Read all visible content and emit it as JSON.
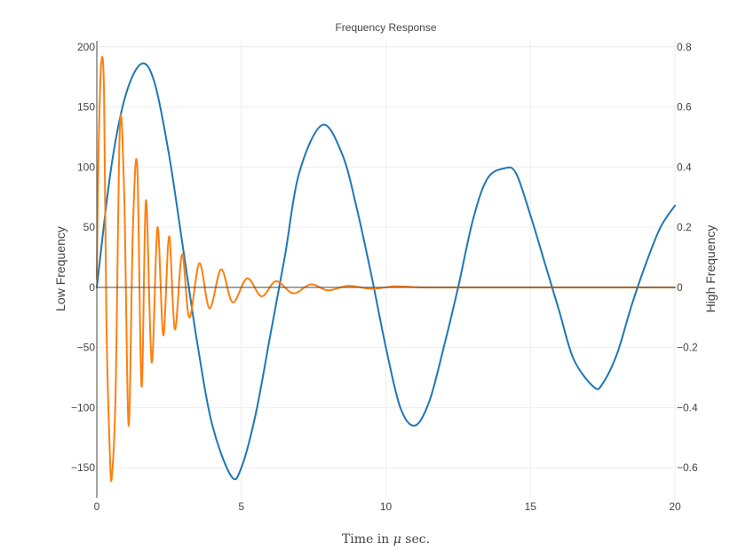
{
  "chart_data": {
    "type": "line",
    "title": "Frequency Response",
    "xlabel": {
      "prefix": "Time in ",
      "symbol": "μ",
      "suffix": " sec."
    },
    "ylabel_left": "Low Frequency",
    "ylabel_right": "High Frequency",
    "xlim": [
      0,
      20
    ],
    "ylim_left": [
      -175,
      205
    ],
    "ylim_right": [
      -0.7,
      0.82
    ],
    "x_ticks": [
      0,
      5,
      10,
      15,
      20
    ],
    "x_tick_labels": [
      "0",
      "5",
      "10",
      "15",
      "20"
    ],
    "y_left_ticks": [
      -150,
      -100,
      -50,
      0,
      50,
      100,
      150,
      200
    ],
    "y_left_tick_labels": [
      "−150",
      "−100",
      "−50",
      "0",
      "50",
      "100",
      "150",
      "200"
    ],
    "y_right_ticks": [
      -0.6,
      -0.4,
      -0.2,
      0,
      0.2,
      0.4,
      0.6,
      0.8
    ],
    "y_right_tick_labels": [
      "−0.6",
      "−0.4",
      "−0.2",
      "0",
      "0.2",
      "0.4",
      "0.6",
      "0.8"
    ],
    "grid": true,
    "colors": {
      "low": "#1f77b4",
      "high": "#ff7f0e",
      "grid": "#eeeeee",
      "zero": "#444444"
    },
    "series": [
      {
        "axis": "left",
        "x": [
          0,
          0.5,
          1.0,
          1.55,
          2.0,
          2.5,
          3.0,
          3.5,
          4.0,
          4.65,
          5.0,
          5.5,
          6.0,
          6.5,
          7.0,
          7.8,
          8.5,
          9.0,
          9.5,
          10.0,
          10.5,
          11.0,
          11.5,
          12.0,
          12.5,
          13.0,
          13.5,
          14.1,
          14.5,
          15.0,
          15.5,
          16.0,
          16.5,
          17.2,
          17.5,
          18.0,
          18.5,
          19.0,
          19.5,
          20.0
        ],
        "y": [
          0,
          100,
          160,
          186,
          170,
          110,
          30,
          -50,
          -115,
          -157,
          -150,
          -105,
          -40,
          25,
          95,
          135,
          110,
          65,
          10,
          -50,
          -100,
          -115,
          -95,
          -50,
          0,
          55,
          90,
          99,
          95,
          60,
          20,
          -20,
          -60,
          -83,
          -80,
          -55,
          -15,
          20,
          50,
          68
        ]
      },
      {
        "axis": "right",
        "x": [
          0,
          0.05,
          0.15,
          0.25,
          0.33,
          0.45,
          0.52,
          0.65,
          0.8,
          0.95,
          1.1,
          1.25,
          1.4,
          1.55,
          1.7,
          1.9,
          2.1,
          2.3,
          2.5,
          2.7,
          2.95,
          3.2,
          3.55,
          3.9,
          4.3,
          4.7,
          5.2,
          5.7,
          6.2,
          6.8,
          7.4,
          8.0,
          8.7,
          9.5,
          10.3,
          11.2,
          12.2,
          13.5,
          15.0,
          17.0,
          20.0
        ],
        "y": [
          0.03,
          0.4,
          0.74,
          0.65,
          -0.1,
          -0.55,
          -0.63,
          -0.35,
          0.54,
          0.3,
          -0.46,
          0.2,
          0.4,
          -0.33,
          0.29,
          -0.25,
          0.2,
          -0.16,
          0.17,
          -0.14,
          0.11,
          -0.1,
          0.08,
          -0.07,
          0.06,
          -0.05,
          0.03,
          -0.03,
          0.02,
          -0.02,
          0.01,
          -0.01,
          0.005,
          -0.005,
          0.003,
          0.0,
          0.0,
          0.0,
          0.0,
          0.0,
          0.0
        ]
      }
    ]
  }
}
